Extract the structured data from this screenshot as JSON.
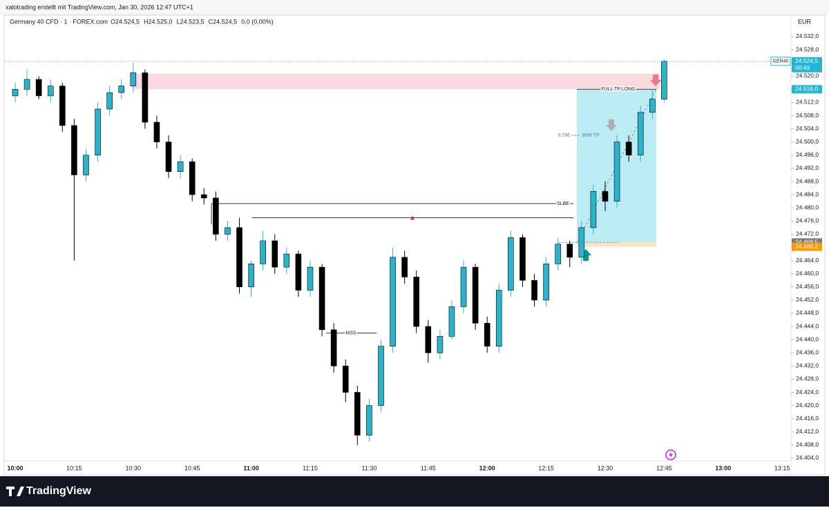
{
  "header": "xalotrading erstellt mit TradingView.com, Jan 30, 2026 12:47 UTC+1",
  "footer": "TradingView",
  "chart_data": {
    "type": "candlestick",
    "symbol": "Germany 40 CFD · 1 · FOREX.com",
    "legend_values": [
      "O24.524,5",
      "H24.525,0",
      "L24.523,5",
      "C24.524,5",
      "0,0 (0,00%)"
    ],
    "currency": "EUR",
    "up_color": "#2bb3cc",
    "down_color": "#000000",
    "open": [
      24514,
      24516,
      24519,
      24514,
      24517,
      24505,
      24490,
      24496,
      24510,
      24515,
      24517,
      24521,
      24506,
      24500,
      24491,
      24494,
      24484,
      24483,
      24472,
      24474,
      24456,
      24463,
      24470,
      24462,
      24466,
      24455,
      24462,
      24443,
      24432,
      24424,
      24411,
      24420,
      24438,
      24465,
      24459,
      24444,
      24436,
      24441,
      24450,
      24462,
      24445,
      24438,
      24455,
      24471,
      24458,
      24452,
      24463,
      24469,
      24465,
      24474,
      24485,
      24482,
      24500,
      24496,
      24509,
      24513
    ],
    "high": [
      24518,
      24522,
      24520,
      24519,
      24518,
      24507,
      24498,
      24512,
      24517,
      24519,
      24524,
      24522,
      24508,
      24502,
      24496,
      24495,
      24486,
      24485,
      24476,
      24477,
      24464,
      24473,
      24472,
      24468,
      24467,
      24464,
      24463,
      24445,
      24434,
      24426,
      24422,
      24440,
      24468,
      24467,
      24461,
      24446,
      24443,
      24452,
      24464,
      24463,
      24447,
      24457,
      24473,
      24472,
      24460,
      24465,
      24471,
      24470,
      24476,
      24487,
      24488,
      24502,
      24502,
      24511,
      24516,
      24525
    ],
    "low": [
      24512,
      24514,
      24513,
      24512,
      24503,
      24464,
      24488,
      24494,
      24508,
      24513,
      24515,
      24504,
      24498,
      24489,
      24489,
      24482,
      24481,
      24470,
      24470,
      24454,
      24453,
      24461,
      24460,
      24460,
      24453,
      24453,
      24441,
      24430,
      24421,
      24408,
      24409,
      24418,
      24436,
      24457,
      24442,
      24433,
      24434,
      24440,
      24448,
      24443,
      24436,
      24436,
      24453,
      24456,
      24450,
      24450,
      24461,
      24462,
      24463,
      24472,
      24479,
      24480,
      24494,
      24494,
      24507,
      24512
    ],
    "close": [
      24516,
      24519,
      24514,
      24517,
      24505,
      24490,
      24496,
      24510,
      24515,
      24517,
      24521,
      24506,
      24500,
      24491,
      24494,
      24484,
      24483,
      24472,
      24474,
      24456,
      24463,
      24470,
      24462,
      24466,
      24455,
      24462,
      24443,
      24432,
      24424,
      24411,
      24420,
      24438,
      24465,
      24459,
      24444,
      24436,
      24441,
      24450,
      24462,
      24445,
      24438,
      24455,
      24471,
      24458,
      24452,
      24463,
      24469,
      24465,
      24474,
      24485,
      24482,
      24500,
      24496,
      24509,
      24513,
      24524.5
    ],
    "ylim": [
      24402.74,
      24534.72
    ],
    "yticks": [
      {
        "value": 24404,
        "label": "24.404,0"
      },
      {
        "value": 24408,
        "label": "24.408,0"
      },
      {
        "value": 24412,
        "label": "24.412,0"
      },
      {
        "value": 24416,
        "label": "24.416,0"
      },
      {
        "value": 24420,
        "label": "24.420,0"
      },
      {
        "value": 24424,
        "label": "24.424,0"
      },
      {
        "value": 24428,
        "label": "24.428,0"
      },
      {
        "value": 24432,
        "label": "24.432,0"
      },
      {
        "value": 24436,
        "label": "24.436,0"
      },
      {
        "value": 24440,
        "label": "24.440,0"
      },
      {
        "value": 24444,
        "label": "24.444,0"
      },
      {
        "value": 24448,
        "label": "24.448,0"
      },
      {
        "value": 24452,
        "label": "24.452,0"
      },
      {
        "value": 24456,
        "label": "24.456,0"
      },
      {
        "value": 24460,
        "label": "24.460,0"
      },
      {
        "value": 24464,
        "label": "24.464,0"
      },
      {
        "value": 24468,
        "label": "24.468,0"
      },
      {
        "value": 24472,
        "label": "24.472,0"
      },
      {
        "value": 24476,
        "label": "24.476,0"
      },
      {
        "value": 24480,
        "label": "24.480,0"
      },
      {
        "value": 24484,
        "label": "24.484,0"
      },
      {
        "value": 24488,
        "label": "24.488,0"
      },
      {
        "value": 24492,
        "label": "24.492,0"
      },
      {
        "value": 24496,
        "label": "24.496,0"
      },
      {
        "value": 24500,
        "label": "24.500,0"
      },
      {
        "value": 24504,
        "label": "24.504,0"
      },
      {
        "value": 24508,
        "label": "24.508,0"
      },
      {
        "value": 24512,
        "label": "24.512,0"
      },
      {
        "value": 24516,
        "label": "24.516,0"
      },
      {
        "value": 24520,
        "label": "24.520,0"
      },
      {
        "value": 24524,
        "label": "24.524,0"
      },
      {
        "value": 24528,
        "label": "24.528,0"
      },
      {
        "value": 24532,
        "label": "24.532,0"
      }
    ],
    "xticks": [
      "10:00",
      "10:15",
      "10:30",
      "10:45",
      "11:00",
      "11:15",
      "11:30",
      "11:45",
      "12:00",
      "12:15",
      "12:30",
      "12:45",
      "13:00",
      "13:15"
    ],
    "price_labels": [
      {
        "value": 24524.5,
        "label": "24.524,5",
        "color": "#22b5d4"
      },
      {
        "value": 24516,
        "label": "24.516,0",
        "color": "#22b5d4"
      },
      {
        "value": 24469.5,
        "label": "24.469,5",
        "color": "#787b86"
      },
      {
        "value": 24468.2,
        "label": "24.468,2",
        "color": "#ff9800"
      }
    ],
    "symbol_tag": "GER40",
    "countdown": "00:43",
    "supply_zone": [
      24516,
      24520.7
    ],
    "slbe": {
      "label": "SLBE",
      "price": 24481.3
    },
    "mss": {
      "label": "MSS",
      "price": 24442
    },
    "level": 24477,
    "position_label": "FULL TP LONG",
    "fib": {
      "ratio": "0,786",
      "label": "80% TP",
      "price": 24502
    }
  }
}
